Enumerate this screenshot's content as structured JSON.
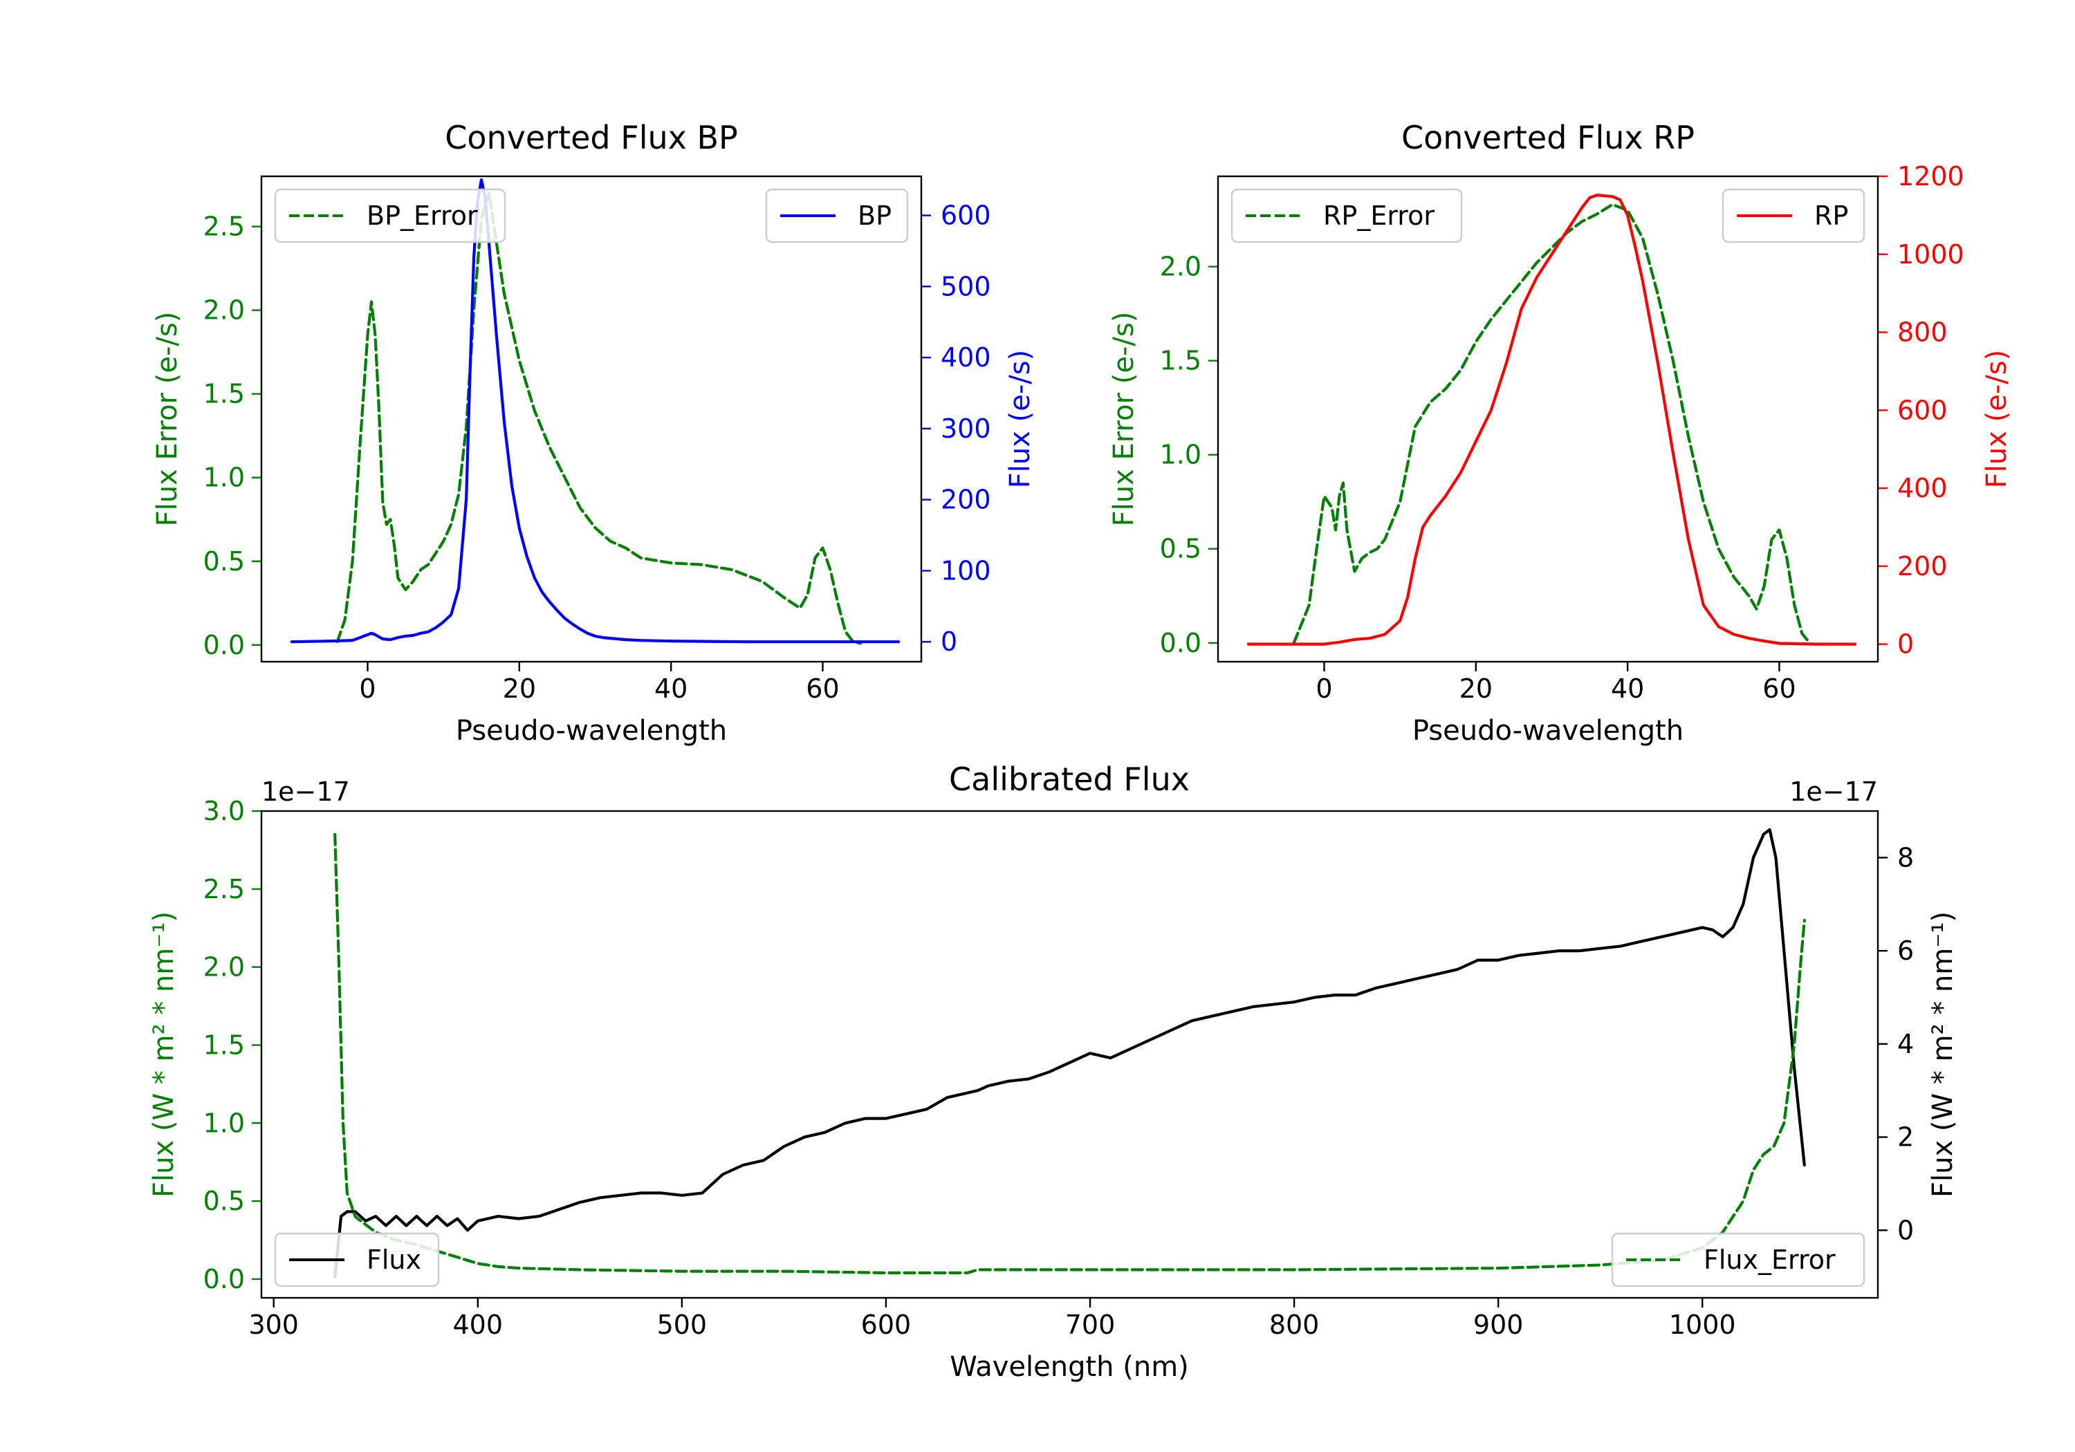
{
  "chart_data": [
    {
      "type": "line",
      "title": "Converted Flux BP",
      "xlabel": "Pseudo-wavelength",
      "xlim": [
        -14,
        73
      ],
      "xticks": [
        0,
        20,
        40,
        60
      ],
      "xtick_labels": [
        "0",
        "20",
        "40",
        "60"
      ],
      "left_axis": {
        "label": "Flux Error (e-/s)",
        "color": "#008000",
        "ylim": [
          -0.1,
          2.8
        ],
        "ticks": [
          0,
          0.5,
          1,
          1.5,
          2,
          2.5
        ],
        "tick_labels": [
          "0.0",
          "0.5",
          "1.0",
          "1.5",
          "2.0",
          "2.5"
        ]
      },
      "right_axis": {
        "label": "Flux (e-/s)",
        "color": "#0000ff",
        "ylim": [
          -28,
          655
        ],
        "ticks": [
          0,
          100,
          200,
          300,
          400,
          500,
          600
        ],
        "tick_labels": [
          "0",
          "100",
          "200",
          "300",
          "400",
          "500",
          "600"
        ]
      },
      "series": [
        {
          "name": "BP_Error",
          "axis": "left",
          "color": "#008000",
          "style": "dashed",
          "x": [
            -4,
            -3,
            -2,
            -1,
            0,
            0.5,
            1,
            1.5,
            2,
            2.5,
            3,
            3.5,
            4,
            5,
            6,
            7,
            8,
            10,
            11,
            12,
            13,
            14,
            15,
            16,
            17,
            18,
            20,
            22,
            24,
            26,
            28,
            30,
            32,
            34,
            36,
            40,
            44,
            48,
            52,
            55,
            57,
            58,
            59,
            60,
            61,
            62,
            63,
            64,
            65
          ],
          "y": [
            0.02,
            0.15,
            0.5,
            1.2,
            1.85,
            2.05,
            1.85,
            1.4,
            0.85,
            0.72,
            0.75,
            0.6,
            0.4,
            0.33,
            0.38,
            0.45,
            0.48,
            0.62,
            0.72,
            0.9,
            1.3,
            2.0,
            2.55,
            2.7,
            2.4,
            2.1,
            1.7,
            1.4,
            1.18,
            1.0,
            0.82,
            0.7,
            0.62,
            0.58,
            0.52,
            0.49,
            0.48,
            0.45,
            0.38,
            0.28,
            0.22,
            0.3,
            0.52,
            0.58,
            0.45,
            0.25,
            0.08,
            0.02,
            0.01
          ]
        },
        {
          "name": "BP",
          "axis": "right",
          "color": "#0000ff",
          "style": "solid",
          "x": [
            -10,
            -5,
            -2,
            -1,
            0,
            0.5,
            1,
            2,
            3,
            4,
            5,
            6,
            7,
            8,
            9,
            10,
            11,
            12,
            13,
            13.5,
            14,
            14.5,
            15,
            15.5,
            16,
            17,
            18,
            19,
            20,
            21,
            22,
            23,
            24,
            25,
            26,
            27,
            28,
            29,
            30,
            31,
            32,
            33,
            34,
            36,
            40,
            50,
            60,
            70
          ],
          "y": [
            0,
            1,
            2,
            6,
            10,
            12,
            10,
            4,
            3,
            6,
            8,
            9,
            12,
            14,
            20,
            28,
            38,
            75,
            200,
            380,
            540,
            620,
            650,
            625,
            560,
            430,
            310,
            220,
            160,
            120,
            90,
            70,
            56,
            44,
            33,
            25,
            18,
            12,
            8,
            6,
            5,
            4,
            3,
            2,
            1,
            0,
            0,
            0
          ]
        }
      ],
      "legend": [
        {
          "label": "BP_Error",
          "position": "upper-left"
        },
        {
          "label": "BP",
          "position": "upper-right"
        }
      ]
    },
    {
      "type": "line",
      "title": "Converted Flux RP",
      "xlabel": "Pseudo-wavelength",
      "xlim": [
        -14,
        73
      ],
      "xticks": [
        0,
        20,
        40,
        60
      ],
      "xtick_labels": [
        "0",
        "20",
        "40",
        "60"
      ],
      "left_axis": {
        "label": "Flux Error (e-/s)",
        "color": "#008000",
        "ylim": [
          -0.1,
          2.48
        ],
        "ticks": [
          0,
          0.5,
          1,
          1.5,
          2
        ],
        "tick_labels": [
          "0.0",
          "0.5",
          "1.0",
          "1.5",
          "2.0"
        ]
      },
      "right_axis": {
        "label": "Flux (e-/s)",
        "color": "#ff0000",
        "ylim": [
          -45,
          1200
        ],
        "ticks": [
          0,
          200,
          400,
          600,
          800,
          1000,
          1200
        ],
        "tick_labels": [
          "0",
          "200",
          "400",
          "600",
          "800",
          "1000",
          "1200"
        ]
      },
      "series": [
        {
          "name": "RP_Error",
          "axis": "left",
          "color": "#008000",
          "style": "dashed",
          "x": [
            -4,
            -2,
            -1,
            0,
            1,
            1.5,
            2,
            2.5,
            3,
            4,
            5,
            6,
            7,
            8,
            10,
            12,
            14,
            16,
            18,
            20,
            22,
            24,
            26,
            28,
            30,
            32,
            34,
            36,
            38,
            40,
            42,
            44,
            46,
            48,
            50,
            52,
            54,
            56,
            57,
            58,
            59,
            60,
            61,
            62,
            63,
            64
          ],
          "y": [
            0.0,
            0.2,
            0.5,
            0.78,
            0.72,
            0.6,
            0.78,
            0.85,
            0.6,
            0.38,
            0.45,
            0.48,
            0.5,
            0.55,
            0.75,
            1.15,
            1.28,
            1.35,
            1.45,
            1.6,
            1.72,
            1.82,
            1.92,
            2.02,
            2.1,
            2.18,
            2.24,
            2.28,
            2.33,
            2.3,
            2.15,
            1.85,
            1.5,
            1.1,
            0.75,
            0.5,
            0.35,
            0.25,
            0.18,
            0.3,
            0.55,
            0.6,
            0.45,
            0.2,
            0.05,
            0.0
          ]
        },
        {
          "name": "RP",
          "axis": "right",
          "color": "#ff0000",
          "style": "solid",
          "x": [
            -10,
            -5,
            0,
            2,
            4,
            6,
            8,
            10,
            11,
            12,
            13,
            14,
            16,
            18,
            20,
            22,
            24,
            26,
            28,
            30,
            32,
            34,
            35,
            36,
            38,
            39,
            40,
            41,
            42,
            44,
            46,
            48,
            50,
            52,
            54,
            56,
            58,
            60,
            65,
            70
          ],
          "y": [
            0,
            0,
            0,
            5,
            12,
            15,
            25,
            60,
            120,
            220,
            300,
            330,
            380,
            440,
            520,
            600,
            720,
            860,
            940,
            1000,
            1060,
            1120,
            1145,
            1152,
            1148,
            1140,
            1100,
            1020,
            930,
            720,
            490,
            270,
            100,
            45,
            25,
            15,
            8,
            2,
            0,
            0
          ]
        }
      ],
      "legend": [
        {
          "label": "RP_Error",
          "position": "upper-left"
        },
        {
          "label": "RP",
          "position": "upper-right"
        }
      ]
    },
    {
      "type": "line",
      "title": "Calibrated Flux",
      "xlabel": "Wavelength (nm)",
      "xlim": [
        294,
        1086
      ],
      "xticks": [
        300,
        400,
        500,
        600,
        700,
        800,
        900,
        1000
      ],
      "xtick_labels": [
        "300",
        "400",
        "500",
        "600",
        "700",
        "800",
        "900",
        "1000"
      ],
      "left_axis": {
        "label": "Flux (W * m² * nm⁻¹)",
        "color": "#008000",
        "ylim": [
          -0.12,
          3.0
        ],
        "ticks": [
          0,
          0.5,
          1,
          1.5,
          2,
          2.5,
          3
        ],
        "tick_labels": [
          "0.0",
          "0.5",
          "1.0",
          "1.5",
          "2.0",
          "2.5",
          "3.0"
        ],
        "offset_text": "1e−17"
      },
      "right_axis": {
        "label": "Flux (W * m² * nm⁻¹)",
        "color": "#000000",
        "ylim": [
          -1.45,
          9.0
        ],
        "ticks": [
          0,
          2,
          4,
          6,
          8
        ],
        "tick_labels": [
          "0",
          "2",
          "4",
          "6",
          "8"
        ],
        "offset_text": "1e−17"
      },
      "series": [
        {
          "name": "Flux",
          "axis": "right",
          "color": "#000000",
          "style": "solid",
          "x": [
            330,
            333,
            336,
            340,
            345,
            350,
            355,
            360,
            365,
            370,
            375,
            380,
            385,
            390,
            395,
            400,
            410,
            420,
            430,
            440,
            450,
            460,
            470,
            480,
            490,
            500,
            510,
            520,
            530,
            540,
            550,
            560,
            570,
            580,
            590,
            600,
            610,
            620,
            630,
            640,
            645,
            650,
            660,
            670,
            680,
            690,
            695,
            700,
            710,
            720,
            730,
            740,
            750,
            760,
            770,
            780,
            790,
            800,
            810,
            820,
            830,
            840,
            850,
            860,
            870,
            880,
            890,
            900,
            910,
            920,
            930,
            940,
            950,
            960,
            970,
            980,
            990,
            1000,
            1005,
            1010,
            1015,
            1020,
            1025,
            1030,
            1033,
            1036,
            1040,
            1045,
            1050
          ],
          "y": [
            -1.0,
            0.3,
            0.4,
            0.4,
            0.2,
            0.3,
            0.1,
            0.3,
            0.1,
            0.3,
            0.1,
            0.3,
            0.1,
            0.25,
            0.0,
            0.2,
            0.3,
            0.25,
            0.3,
            0.45,
            0.6,
            0.7,
            0.75,
            0.8,
            0.8,
            0.75,
            0.8,
            1.2,
            1.4,
            1.5,
            1.8,
            2.0,
            2.1,
            2.3,
            2.4,
            2.4,
            2.5,
            2.6,
            2.85,
            2.95,
            3.0,
            3.1,
            3.2,
            3.25,
            3.4,
            3.6,
            3.7,
            3.8,
            3.7,
            3.9,
            4.1,
            4.3,
            4.5,
            4.6,
            4.7,
            4.8,
            4.85,
            4.9,
            5.0,
            5.05,
            5.05,
            5.2,
            5.3,
            5.4,
            5.5,
            5.6,
            5.8,
            5.8,
            5.9,
            5.95,
            6.0,
            6.0,
            6.05,
            6.1,
            6.2,
            6.3,
            6.4,
            6.5,
            6.45,
            6.3,
            6.5,
            7.0,
            8.0,
            8.5,
            8.6,
            8.0,
            6.0,
            3.5,
            1.4
          ]
        },
        {
          "name": "Flux_Error",
          "axis": "left",
          "color": "#008000",
          "style": "dashed",
          "x": [
            330,
            332,
            334,
            336,
            340,
            350,
            360,
            370,
            380,
            390,
            400,
            410,
            420,
            450,
            500,
            550,
            600,
            640,
            645,
            700,
            800,
            900,
            950,
            980,
            1000,
            1010,
            1015,
            1020,
            1025,
            1030,
            1035,
            1040,
            1045,
            1048,
            1050
          ],
          "y": [
            2.85,
            2.0,
            1.0,
            0.55,
            0.4,
            0.3,
            0.25,
            0.22,
            0.18,
            0.14,
            0.1,
            0.08,
            0.07,
            0.06,
            0.05,
            0.05,
            0.04,
            0.04,
            0.06,
            0.06,
            0.06,
            0.07,
            0.09,
            0.12,
            0.2,
            0.3,
            0.4,
            0.5,
            0.7,
            0.8,
            0.85,
            1.0,
            1.5,
            2.0,
            2.3
          ]
        }
      ],
      "legend": [
        {
          "label": "Flux",
          "position": "lower-left"
        },
        {
          "label": "Flux_Error",
          "position": "lower-right"
        }
      ]
    }
  ]
}
